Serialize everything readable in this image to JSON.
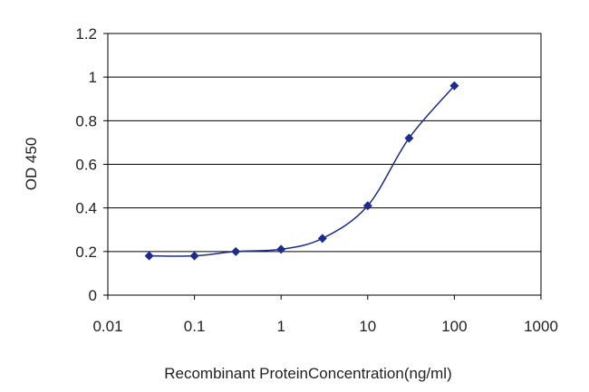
{
  "chart_data": {
    "type": "line",
    "title": "",
    "xlabel": "Recombinant ProteinConcentration(ng/ml)",
    "ylabel": "OD 450",
    "x_scale": "log",
    "xlim": [
      0.01,
      1000
    ],
    "ylim": [
      0,
      1.2
    ],
    "x_ticks": [
      "0.01",
      "0.1",
      "1",
      "10",
      "100",
      "1000"
    ],
    "y_ticks": [
      "0",
      "0.2",
      "0.4",
      "0.6",
      "0.8",
      "1",
      "1.2"
    ],
    "grid": "horizontal",
    "series": [
      {
        "color": "#1c2c8c",
        "marker": "diamond",
        "x": [
          0.03,
          0.1,
          0.3,
          1,
          3,
          10,
          30,
          100
        ],
        "y": [
          0.18,
          0.18,
          0.2,
          0.21,
          0.26,
          0.41,
          0.72,
          0.96
        ]
      }
    ]
  }
}
